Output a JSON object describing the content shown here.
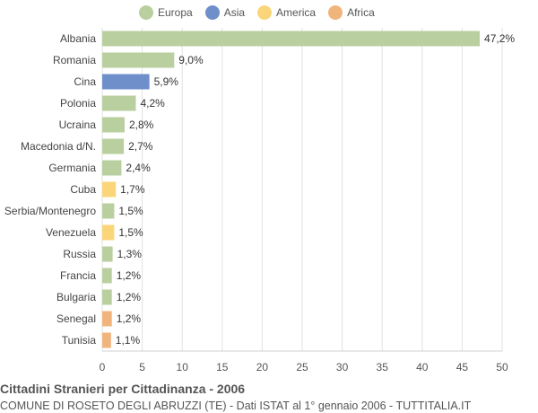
{
  "chart_data": {
    "type": "bar",
    "orientation": "horizontal",
    "title": "Cittadini Stranieri per Cittadinanza - 2006",
    "subtitle": "COMUNE DI ROSETO DEGLI ABRUZZI (TE) - Dati ISTAT al 1° gennaio 2006 - TUTTITALIA.IT",
    "legend_position": "top",
    "legend": [
      {
        "name": "Europa",
        "color": "#b9cf9f"
      },
      {
        "name": "Asia",
        "color": "#6f8fcb"
      },
      {
        "name": "America",
        "color": "#fad57a"
      },
      {
        "name": "Africa",
        "color": "#f0b47c"
      }
    ],
    "categories": [
      "Albania",
      "Romania",
      "Cina",
      "Polonia",
      "Ucraina",
      "Macedonia d/N.",
      "Germania",
      "Cuba",
      "Serbia/Montenegro",
      "Venezuela",
      "Russia",
      "Francia",
      "Bulgaria",
      "Senegal",
      "Tunisia"
    ],
    "values": [
      47.2,
      9.0,
      5.9,
      4.2,
      2.8,
      2.7,
      2.4,
      1.7,
      1.5,
      1.5,
      1.3,
      1.2,
      1.2,
      1.2,
      1.1
    ],
    "value_labels": [
      "47,2%",
      "9,0%",
      "5,9%",
      "4,2%",
      "2,8%",
      "2,7%",
      "2,4%",
      "1,7%",
      "1,5%",
      "1,5%",
      "1,3%",
      "1,2%",
      "1,2%",
      "1,2%",
      "1,1%"
    ],
    "continents": [
      "Europa",
      "Europa",
      "Asia",
      "Europa",
      "Europa",
      "Europa",
      "Europa",
      "America",
      "Europa",
      "America",
      "Europa",
      "Europa",
      "Europa",
      "Africa",
      "Africa"
    ],
    "xlim": [
      0,
      50
    ],
    "xticks": [
      0,
      5,
      10,
      15,
      20,
      25,
      30,
      35,
      40,
      45,
      50
    ],
    "grid": true
  }
}
